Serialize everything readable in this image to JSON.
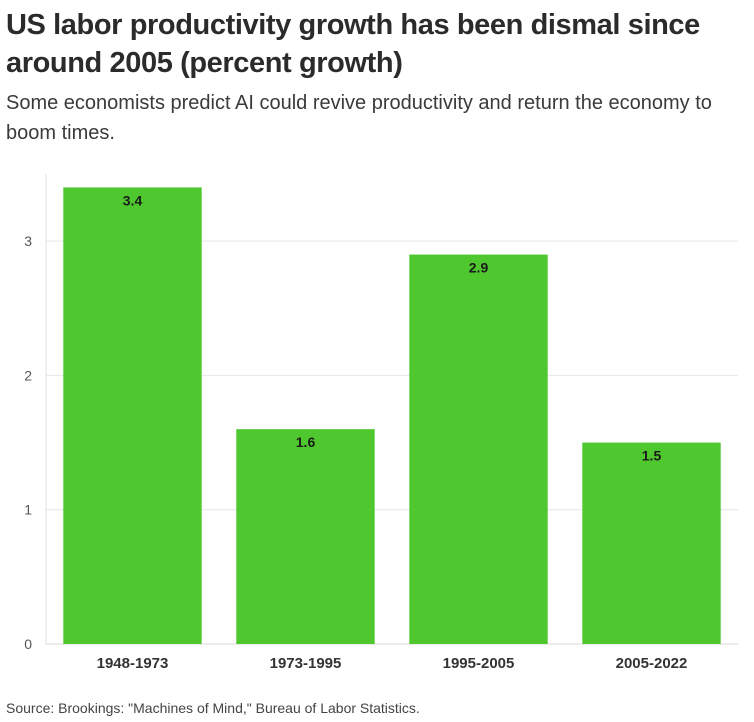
{
  "chart_data": {
    "type": "bar",
    "title": "US labor productivity growth has been dismal since around 2005 (percent growth)",
    "subtitle": "Some economists predict AI could revive productivity and return the economy to boom times.",
    "categories": [
      "1948-1973",
      "1973-1995",
      "1995-2005",
      "2005-2022"
    ],
    "values": [
      3.4,
      1.6,
      2.9,
      1.5
    ],
    "data_labels": [
      "3.4",
      "1.6",
      "2.9",
      "1.5"
    ],
    "ylim": [
      0,
      3.5
    ],
    "yticks": [
      0,
      1,
      2,
      3
    ],
    "xlabel": "",
    "ylabel": "",
    "grid": true,
    "legend": "none",
    "bar_color": "#4fc830",
    "source": "Source: Brookings: \"Machines of Mind,\" Bureau of Labor Statistics."
  }
}
